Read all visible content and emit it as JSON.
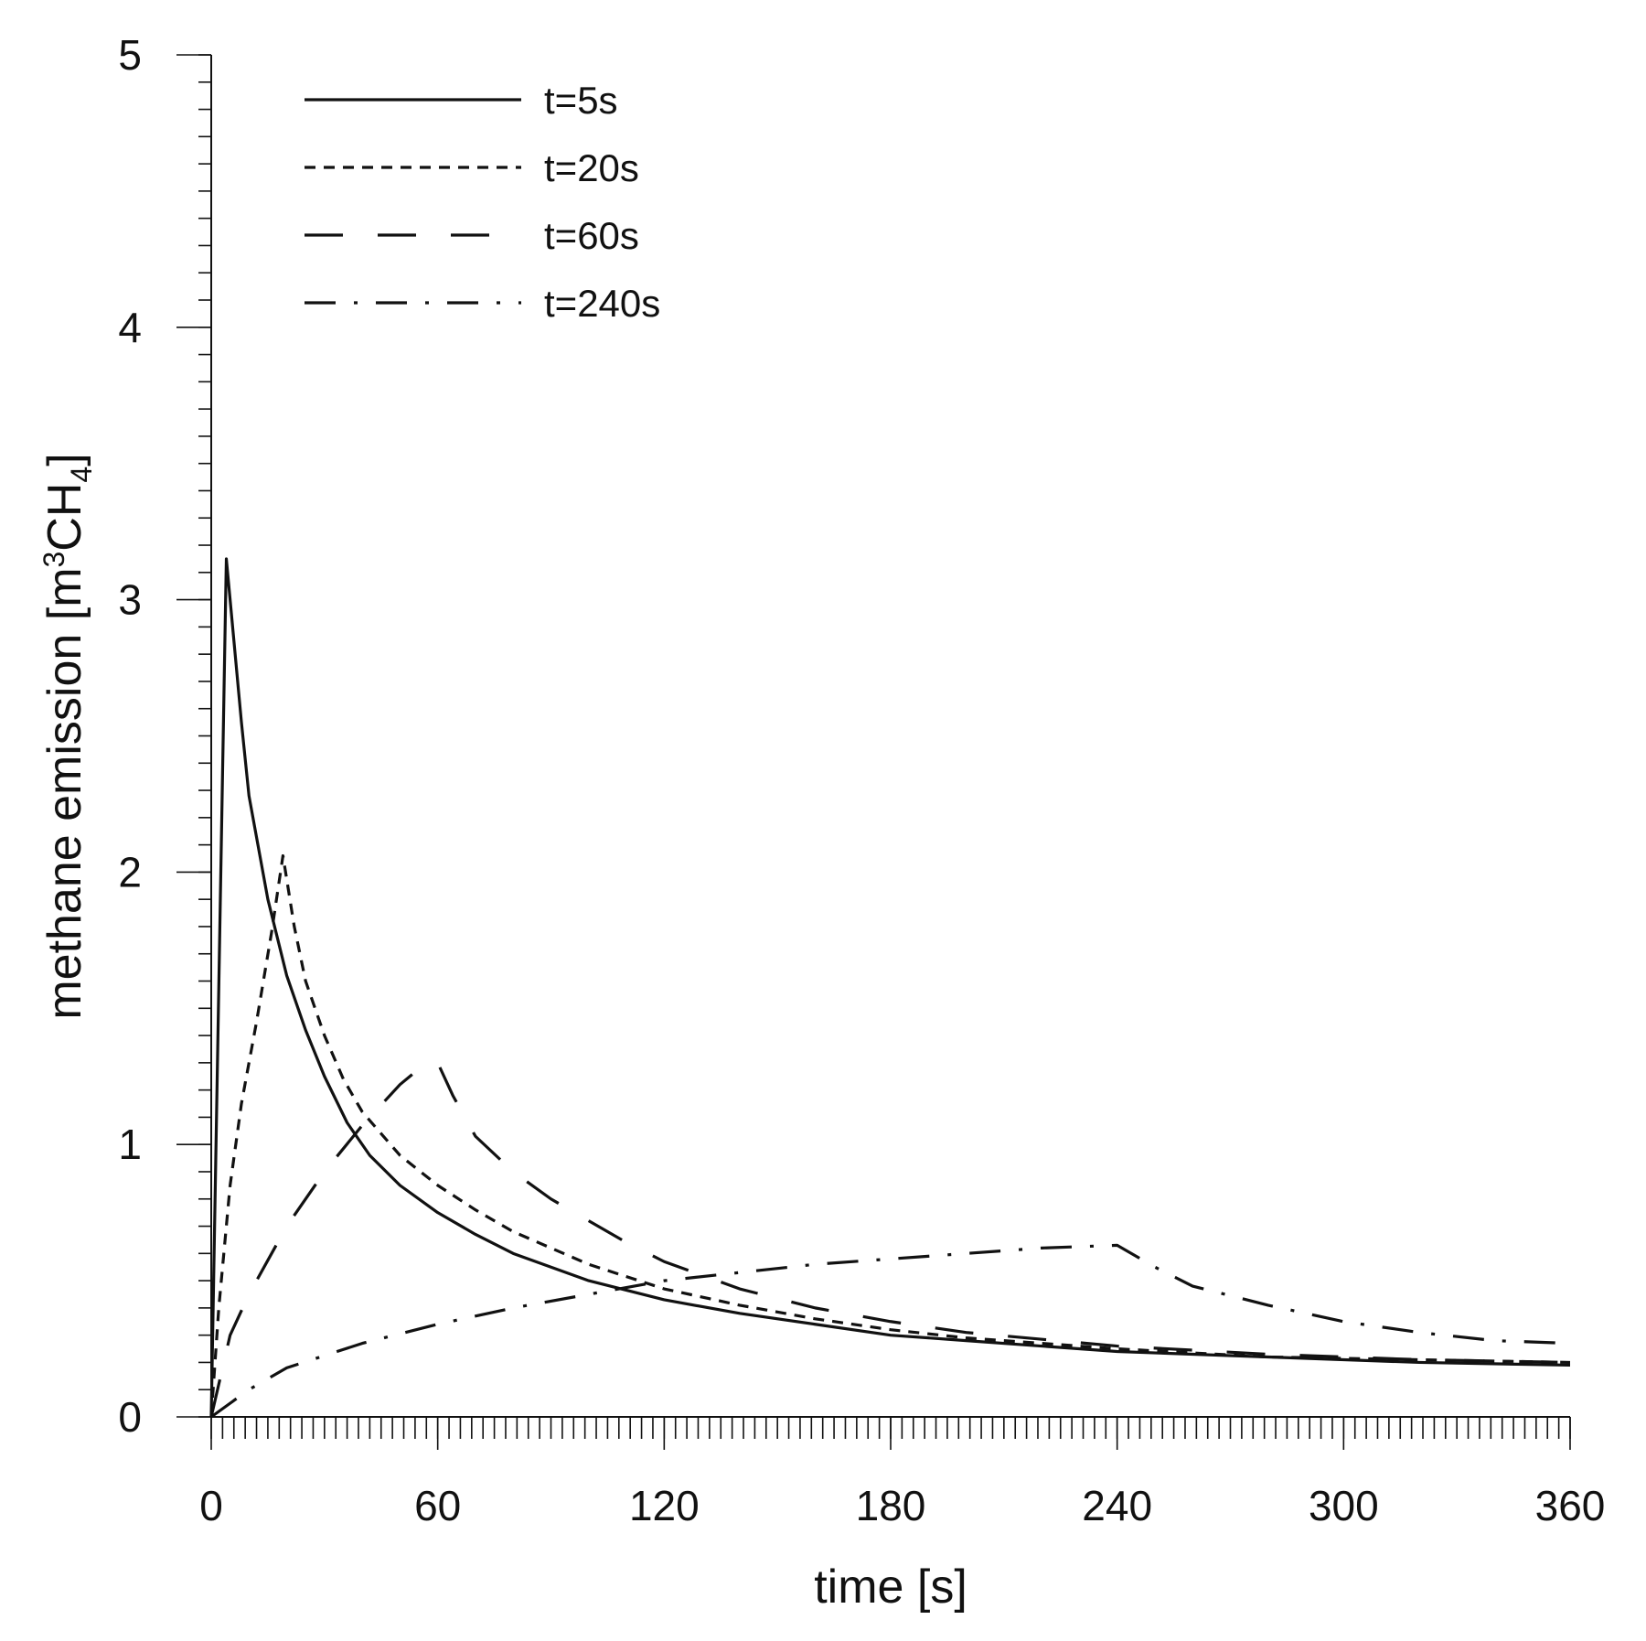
{
  "chart_data": {
    "type": "line",
    "title": "",
    "xlabel": "time [s]",
    "ylabel_main": "methane emission [m",
    "ylabel_sup": "3",
    "ylabel_mid": "CH",
    "ylabel_sub": "4",
    "ylabel_end": "]",
    "xlim": [
      0,
      360
    ],
    "ylim": [
      0,
      5
    ],
    "x_ticks": [
      0,
      60,
      120,
      180,
      240,
      300,
      360
    ],
    "x_tick_labels": [
      "0",
      "60",
      "120",
      "180",
      "240",
      "300",
      "360"
    ],
    "y_ticks": [
      0,
      1,
      2,
      3,
      4,
      5
    ],
    "y_tick_labels": [
      "0",
      "1",
      "2",
      "3",
      "4",
      "5"
    ],
    "x_minor_step": 3,
    "y_minor_step": 0.1,
    "grid": false,
    "legend_position": "top-left",
    "series": [
      {
        "name": "t=5s",
        "dash": "solid",
        "points": [
          [
            0,
            0
          ],
          [
            4,
            3.15
          ],
          [
            6,
            2.85
          ],
          [
            8,
            2.55
          ],
          [
            10,
            2.28
          ],
          [
            15,
            1.9
          ],
          [
            20,
            1.62
          ],
          [
            25,
            1.42
          ],
          [
            30,
            1.25
          ],
          [
            36,
            1.08
          ],
          [
            42,
            0.96
          ],
          [
            50,
            0.85
          ],
          [
            60,
            0.75
          ],
          [
            70,
            0.67
          ],
          [
            80,
            0.6
          ],
          [
            100,
            0.5
          ],
          [
            120,
            0.43
          ],
          [
            140,
            0.38
          ],
          [
            160,
            0.34
          ],
          [
            180,
            0.3
          ],
          [
            200,
            0.28
          ],
          [
            240,
            0.24
          ],
          [
            280,
            0.22
          ],
          [
            320,
            0.2
          ],
          [
            360,
            0.19
          ]
        ]
      },
      {
        "name": "t=20s",
        "dash": "short",
        "points": [
          [
            0,
            0
          ],
          [
            2,
            0.4
          ],
          [
            5,
            0.85
          ],
          [
            8,
            1.15
          ],
          [
            12,
            1.45
          ],
          [
            16,
            1.78
          ],
          [
            19,
            2.06
          ],
          [
            22,
            1.8
          ],
          [
            25,
            1.6
          ],
          [
            30,
            1.4
          ],
          [
            35,
            1.24
          ],
          [
            40,
            1.12
          ],
          [
            50,
            0.96
          ],
          [
            60,
            0.85
          ],
          [
            70,
            0.76
          ],
          [
            80,
            0.68
          ],
          [
            100,
            0.56
          ],
          [
            120,
            0.47
          ],
          [
            140,
            0.41
          ],
          [
            160,
            0.36
          ],
          [
            180,
            0.32
          ],
          [
            200,
            0.29
          ],
          [
            240,
            0.25
          ],
          [
            280,
            0.22
          ],
          [
            320,
            0.21
          ],
          [
            360,
            0.2
          ]
        ]
      },
      {
        "name": "t=60s",
        "dash": "long",
        "points": [
          [
            0,
            0
          ],
          [
            5,
            0.3
          ],
          [
            10,
            0.45
          ],
          [
            20,
            0.7
          ],
          [
            30,
            0.9
          ],
          [
            40,
            1.07
          ],
          [
            50,
            1.22
          ],
          [
            57,
            1.3
          ],
          [
            60,
            1.3
          ],
          [
            64,
            1.18
          ],
          [
            70,
            1.03
          ],
          [
            80,
            0.9
          ],
          [
            90,
            0.8
          ],
          [
            100,
            0.72
          ],
          [
            110,
            0.64
          ],
          [
            120,
            0.57
          ],
          [
            140,
            0.47
          ],
          [
            160,
            0.4
          ],
          [
            180,
            0.35
          ],
          [
            200,
            0.31
          ],
          [
            240,
            0.26
          ],
          [
            280,
            0.23
          ],
          [
            320,
            0.21
          ],
          [
            360,
            0.2
          ]
        ]
      },
      {
        "name": "t=240s",
        "dash": "dashdot",
        "points": [
          [
            0,
            0
          ],
          [
            10,
            0.1
          ],
          [
            20,
            0.18
          ],
          [
            40,
            0.27
          ],
          [
            60,
            0.34
          ],
          [
            80,
            0.4
          ],
          [
            100,
            0.45
          ],
          [
            120,
            0.5
          ],
          [
            140,
            0.53
          ],
          [
            160,
            0.56
          ],
          [
            180,
            0.58
          ],
          [
            200,
            0.6
          ],
          [
            220,
            0.62
          ],
          [
            240,
            0.63
          ],
          [
            250,
            0.55
          ],
          [
            260,
            0.48
          ],
          [
            280,
            0.41
          ],
          [
            300,
            0.35
          ],
          [
            320,
            0.31
          ],
          [
            340,
            0.28
          ],
          [
            360,
            0.27
          ]
        ]
      }
    ]
  }
}
